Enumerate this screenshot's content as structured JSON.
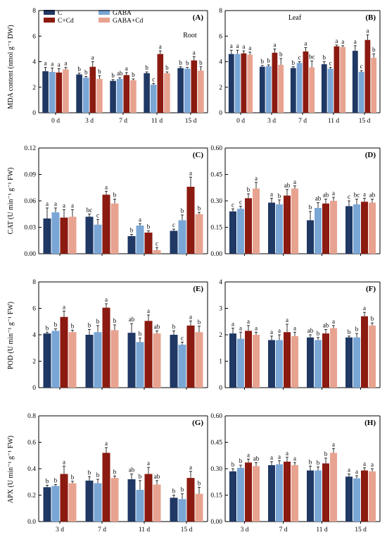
{
  "legend": [
    {
      "name": "C",
      "color": "#1f3864"
    },
    {
      "name": "C+Cd",
      "color": "#8b1a10"
    },
    {
      "name": "GABA",
      "color": "#7aa6d6"
    },
    {
      "name": "GABA+Cd",
      "color": "#e8a390"
    }
  ],
  "series_order": [
    "C",
    "GABA",
    "C+Cd",
    "GABA+Cd"
  ],
  "colors": {
    "C": "#1f3864",
    "GABA": "#7aa6d6",
    "C+Cd": "#8b1a10",
    "GABA+Cd": "#e8a390"
  },
  "row_labels": [
    "MDA content (nmol g⁻¹ DW)",
    "CAT (U min⁻¹ g⁻¹ FW)",
    "POD (U min⁻¹ g⁻¹ FW)",
    "APX (U min⁻¹ g⁻¹ FW)"
  ],
  "chart_data": [
    {
      "panel": "(A)",
      "type": "bar",
      "annotation": "Root",
      "categories": [
        "0 d",
        "3 d",
        "7 d",
        "11 d",
        "15 d"
      ],
      "ylim": [
        0,
        8
      ],
      "yticks": [
        0,
        2,
        4,
        6,
        8
      ],
      "series": [
        {
          "name": "C",
          "values": [
            3.25,
            3.0,
            2.5,
            3.1,
            3.5
          ],
          "err": [
            0.3,
            0.1,
            0.1,
            0.1,
            0.1
          ],
          "sig": [
            "a",
            "b",
            "b",
            "b",
            "b"
          ]
        },
        {
          "name": "GABA",
          "values": [
            3.2,
            2.75,
            2.65,
            2.2,
            3.45
          ],
          "err": [
            0.3,
            0.1,
            0.1,
            0.1,
            0.1
          ],
          "sig": [
            "a",
            "b",
            "ab",
            "c",
            "b"
          ]
        },
        {
          "name": "C+Cd",
          "values": [
            3.15,
            3.6,
            2.95,
            4.6,
            4.1
          ],
          "err": [
            0.3,
            0.4,
            0.2,
            0.25,
            0.3
          ],
          "sig": [
            "a",
            "a",
            "a",
            "a",
            "a"
          ]
        },
        {
          "name": "GABA+Cd",
          "values": [
            3.4,
            2.65,
            2.55,
            3.1,
            3.3
          ],
          "err": [
            0.15,
            0.25,
            0.1,
            0.1,
            0.3
          ],
          "sig": [
            "a",
            "b",
            "b",
            "b",
            "b"
          ]
        }
      ]
    },
    {
      "panel": "(B)",
      "type": "bar",
      "annotation": "Leaf",
      "categories": [
        "0 d",
        "3 d",
        "7 d",
        "11 d",
        "15 d"
      ],
      "ylim": [
        0,
        8
      ],
      "yticks": [
        0,
        2,
        4,
        6,
        8
      ],
      "series": [
        {
          "name": "C",
          "values": [
            4.6,
            3.6,
            3.5,
            3.8,
            4.85
          ],
          "err": [
            0.3,
            0.1,
            0.1,
            0.2,
            0.4
          ],
          "sig": [
            "a",
            "b",
            "b",
            "b",
            "a"
          ]
        },
        {
          "name": "GABA",
          "values": [
            4.6,
            3.65,
            3.9,
            3.45,
            3.2
          ],
          "err": [
            0.3,
            0.1,
            0.1,
            0.1,
            0.1
          ],
          "sig": [
            "a",
            "b",
            "c",
            "c",
            "c"
          ]
        },
        {
          "name": "C+Cd",
          "values": [
            4.65,
            4.7,
            4.8,
            5.2,
            5.7
          ],
          "err": [
            0.2,
            0.3,
            0.3,
            0.1,
            0.4
          ],
          "sig": [
            "a",
            "a",
            "a",
            "a",
            "a"
          ]
        },
        {
          "name": "GABA+Cd",
          "values": [
            4.55,
            3.75,
            3.55,
            5.15,
            4.3
          ],
          "err": [
            0.2,
            0.5,
            0.5,
            0.1,
            0.3
          ],
          "sig": [
            "a",
            "b",
            "bc",
            "a",
            "b"
          ]
        }
      ]
    },
    {
      "panel": "(C)",
      "type": "bar",
      "categories": [
        "3 d",
        "7 d",
        "11 d",
        "15 d"
      ],
      "ylim": [
        0,
        0.12
      ],
      "yticks": [
        0.0,
        0.03,
        0.06,
        0.09,
        0.12
      ],
      "ytick_labels": [
        "0.00",
        "0.03",
        "0.06",
        "0.09",
        "0.12"
      ],
      "series": [
        {
          "name": "C",
          "values": [
            0.04,
            0.042,
            0.02,
            0.026
          ],
          "err": [
            0.012,
            0.003,
            0.002,
            0.002
          ],
          "sig": [
            "a",
            "bc",
            "b",
            "c"
          ]
        },
        {
          "name": "GABA",
          "values": [
            0.047,
            0.033,
            0.032,
            0.038
          ],
          "err": [
            0.005,
            0.006,
            0.002,
            0.006
          ],
          "sig": [
            "a",
            "c",
            "a",
            "b"
          ]
        },
        {
          "name": "C+Cd",
          "values": [
            0.041,
            0.067,
            0.024,
            0.076
          ],
          "err": [
            0.009,
            0.004,
            0.002,
            0.011
          ],
          "sig": [
            "a",
            "a",
            "b",
            "a"
          ]
        },
        {
          "name": "GABA+Cd",
          "values": [
            0.042,
            0.057,
            0.004,
            0.045
          ],
          "err": [
            0.008,
            0.005,
            0.003,
            0.002
          ],
          "sig": [
            "a",
            "b",
            "c",
            "b"
          ]
        }
      ]
    },
    {
      "panel": "(D)",
      "type": "bar",
      "categories": [
        "3 d",
        "7 d",
        "11 d",
        "15 d"
      ],
      "ylim": [
        0,
        0.6
      ],
      "yticks": [
        0.0,
        0.15,
        0.3,
        0.45,
        0.6
      ],
      "ytick_labels": [
        "0.00",
        "0.15",
        "0.30",
        "0.45",
        "0.60"
      ],
      "series": [
        {
          "name": "C",
          "values": [
            0.24,
            0.29,
            0.19,
            0.27
          ],
          "err": [
            0.015,
            0.025,
            0.05,
            0.03
          ],
          "sig": [
            "c",
            "a",
            "b",
            "c"
          ]
        },
        {
          "name": "GABA",
          "values": [
            0.255,
            0.28,
            0.26,
            0.28
          ],
          "err": [
            0.015,
            0.025,
            0.03,
            0.03
          ],
          "sig": [
            "c",
            "b",
            "ab",
            "bc"
          ]
        },
        {
          "name": "C+Cd",
          "values": [
            0.315,
            0.33,
            0.285,
            0.295
          ],
          "err": [
            0.025,
            0.035,
            0.025,
            0.02
          ],
          "sig": [
            "b",
            "ab",
            "ab",
            "a"
          ]
        },
        {
          "name": "GABA+Cd",
          "values": [
            0.37,
            0.37,
            0.3,
            0.29
          ],
          "err": [
            0.035,
            0.015,
            0.02,
            0.02
          ],
          "sig": [
            "a",
            "a",
            "a",
            "ab"
          ]
        }
      ]
    },
    {
      "panel": "(E)",
      "type": "bar",
      "categories": [
        "3 d",
        "7 d",
        "11 d",
        "15 d"
      ],
      "ylim": [
        0,
        8
      ],
      "yticks": [
        0,
        2,
        4,
        6,
        8
      ],
      "series": [
        {
          "name": "C",
          "values": [
            4.1,
            4.0,
            4.15,
            4.0
          ],
          "err": [
            0.1,
            0.4,
            0.7,
            0.3
          ],
          "sig": [
            "b",
            "b",
            "ab",
            "b"
          ]
        },
        {
          "name": "GABA",
          "values": [
            4.3,
            4.2,
            3.45,
            3.25
          ],
          "err": [
            0.15,
            0.5,
            0.3,
            0.2
          ],
          "sig": [
            "b",
            "b",
            "b",
            "c"
          ]
        },
        {
          "name": "C+Cd",
          "values": [
            5.35,
            6.05,
            5.05,
            4.7
          ],
          "err": [
            0.45,
            0.3,
            0.45,
            0.35
          ],
          "sig": [
            "a",
            "a",
            "a",
            "a"
          ]
        },
        {
          "name": "GABA+Cd",
          "values": [
            4.2,
            4.35,
            4.1,
            4.2
          ],
          "err": [
            0.15,
            0.4,
            0.2,
            0.45
          ],
          "sig": [
            "b",
            "b",
            "ab",
            "b"
          ]
        }
      ]
    },
    {
      "panel": "(F)",
      "type": "bar",
      "categories": [
        "3 d",
        "7 d",
        "11 d",
        "15 d"
      ],
      "ylim": [
        0,
        4
      ],
      "yticks": [
        0,
        1,
        2,
        3,
        4
      ],
      "series": [
        {
          "name": "C",
          "values": [
            2.05,
            1.8,
            1.9,
            1.9
          ],
          "err": [
            0.2,
            0.15,
            0.1,
            0.05
          ],
          "sig": [
            "a",
            "a",
            "ab",
            "b"
          ]
        },
        {
          "name": "GABA",
          "values": [
            1.85,
            1.8,
            1.8,
            1.9
          ],
          "err": [
            0.25,
            0.2,
            0.1,
            0.15
          ],
          "sig": [
            "a",
            "a",
            "b",
            "b"
          ]
        },
        {
          "name": "C+Cd",
          "values": [
            2.15,
            2.1,
            2.05,
            2.7
          ],
          "err": [
            0.2,
            0.3,
            0.15,
            0.15
          ],
          "sig": [
            "a",
            "a",
            "ab",
            "a"
          ]
        },
        {
          "name": "GABA+Cd",
          "values": [
            2.0,
            1.95,
            2.25,
            2.35
          ],
          "err": [
            0.1,
            0.15,
            0.1,
            0.1
          ],
          "sig": [
            "a",
            "a",
            "a",
            "b"
          ]
        }
      ]
    },
    {
      "panel": "(G)",
      "type": "bar",
      "categories": [
        "3 d",
        "7 d",
        "11 d",
        "15 d"
      ],
      "ylim": [
        0,
        0.8
      ],
      "yticks": [
        0.0,
        0.2,
        0.4,
        0.6,
        0.8
      ],
      "ytick_labels": [
        "0.0",
        "0.2",
        "0.4",
        "0.6",
        "0.8"
      ],
      "series": [
        {
          "name": "C",
          "values": [
            0.26,
            0.31,
            0.32,
            0.18
          ],
          "err": [
            0.015,
            0.03,
            0.04,
            0.02
          ],
          "sig": [
            "b",
            "b",
            "ab",
            "b"
          ]
        },
        {
          "name": "GABA",
          "values": [
            0.27,
            0.29,
            0.24,
            0.17
          ],
          "err": [
            0.01,
            0.03,
            0.07,
            0.04
          ],
          "sig": [
            "b",
            "b",
            "b",
            "b"
          ]
        },
        {
          "name": "C+Cd",
          "values": [
            0.36,
            0.52,
            0.36,
            0.33
          ],
          "err": [
            0.06,
            0.04,
            0.05,
            0.05
          ],
          "sig": [
            "a",
            "a",
            "a",
            "a"
          ]
        },
        {
          "name": "GABA+Cd",
          "values": [
            0.29,
            0.33,
            0.28,
            0.21
          ],
          "err": [
            0.015,
            0.015,
            0.03,
            0.05
          ],
          "sig": [
            "b",
            "b",
            "ab",
            "b"
          ]
        }
      ]
    },
    {
      "panel": "(H)",
      "type": "bar",
      "categories": [
        "3 d",
        "7 d",
        "11 d",
        "15 d"
      ],
      "ylim": [
        0,
        0.6
      ],
      "yticks": [
        0.0,
        0.15,
        0.3,
        0.45,
        0.6
      ],
      "ytick_labels": [
        "0.00",
        "0.15",
        "0.30",
        "0.45",
        "0.60"
      ],
      "series": [
        {
          "name": "C",
          "values": [
            0.285,
            0.32,
            0.29,
            0.255
          ],
          "err": [
            0.015,
            0.02,
            0.025,
            0.015
          ],
          "sig": [
            "b",
            "a",
            "b",
            "a"
          ]
        },
        {
          "name": "GABA",
          "values": [
            0.305,
            0.325,
            0.29,
            0.245
          ],
          "err": [
            0.015,
            0.02,
            0.02,
            0.015
          ],
          "sig": [
            "b",
            "a",
            "b",
            "a"
          ]
        },
        {
          "name": "C+Cd",
          "values": [
            0.335,
            0.34,
            0.33,
            0.29
          ],
          "err": [
            0.02,
            0.025,
            0.03,
            0.015
          ],
          "sig": [
            "a",
            "a",
            "b",
            "a"
          ]
        },
        {
          "name": "GABA+Cd",
          "values": [
            0.315,
            0.32,
            0.39,
            0.285
          ],
          "err": [
            0.02,
            0.015,
            0.025,
            0.015
          ],
          "sig": [
            "ab",
            "a",
            "a",
            "a"
          ]
        }
      ]
    }
  ]
}
